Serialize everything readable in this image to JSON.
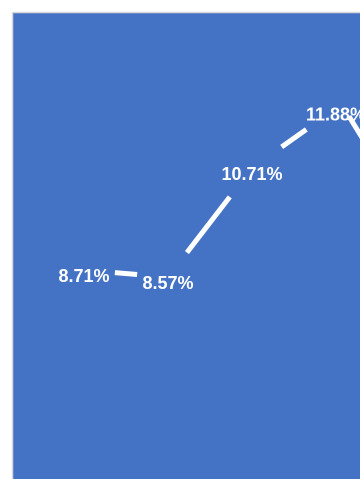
{
  "chart_data": {
    "type": "line",
    "title": "",
    "xlabel": "",
    "ylabel": "",
    "series": [
      {
        "values": [
          8.71,
          8.57,
          10.71,
          11.88
        ],
        "data_labels": [
          "8.71%",
          "8.57%",
          "10.71%",
          "11.88%"
        ]
      }
    ],
    "continues_offscreen": true,
    "grid": false,
    "legend": "none",
    "colors": {
      "plot_background": "#4472c4",
      "panel_border": "#d9d9d9",
      "line": "#ffffff",
      "drop_line": "#ffffff"
    }
  }
}
